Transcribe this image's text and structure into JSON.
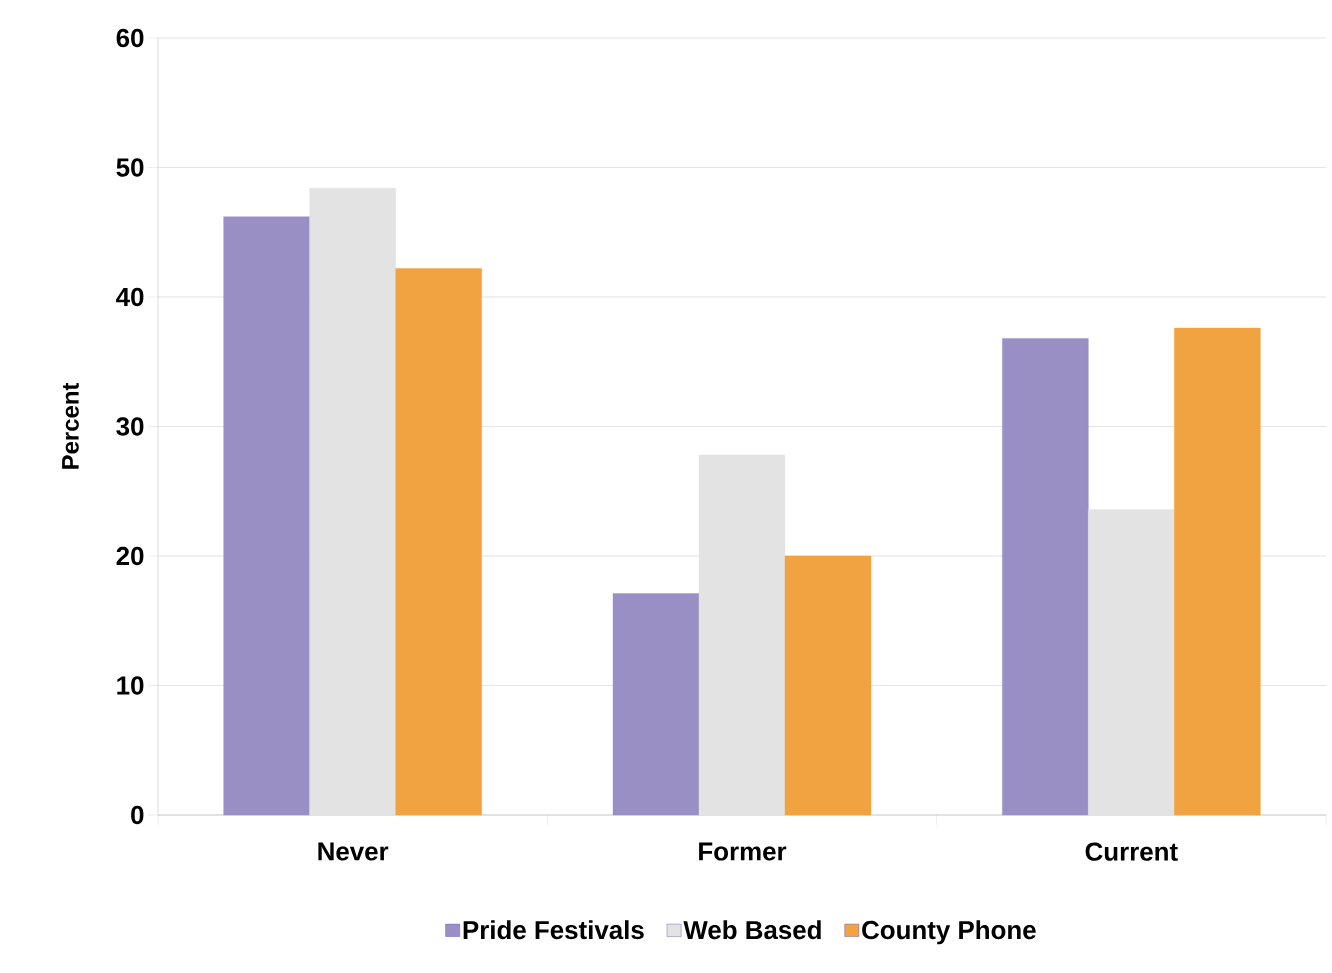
{
  "chart_data": {
    "type": "bar",
    "ylabel": "Percent",
    "categories": [
      "Never",
      "Former",
      "Current"
    ],
    "series": [
      {
        "name": "Pride Festivals",
        "color": "#9a8fc4",
        "values": [
          46.2,
          17.1,
          36.8
        ]
      },
      {
        "name": "Web Based",
        "color": "#e3e3e3",
        "values": [
          48.4,
          27.8,
          23.6
        ]
      },
      {
        "name": "County Phone",
        "color": "#f0a340",
        "values": [
          42.2,
          20.0,
          37.6
        ]
      }
    ],
    "ylim": [
      0,
      60
    ],
    "yticks": [
      0,
      10,
      20,
      30,
      40,
      50,
      60
    ],
    "grid": "y",
    "legend": "bottom"
  }
}
